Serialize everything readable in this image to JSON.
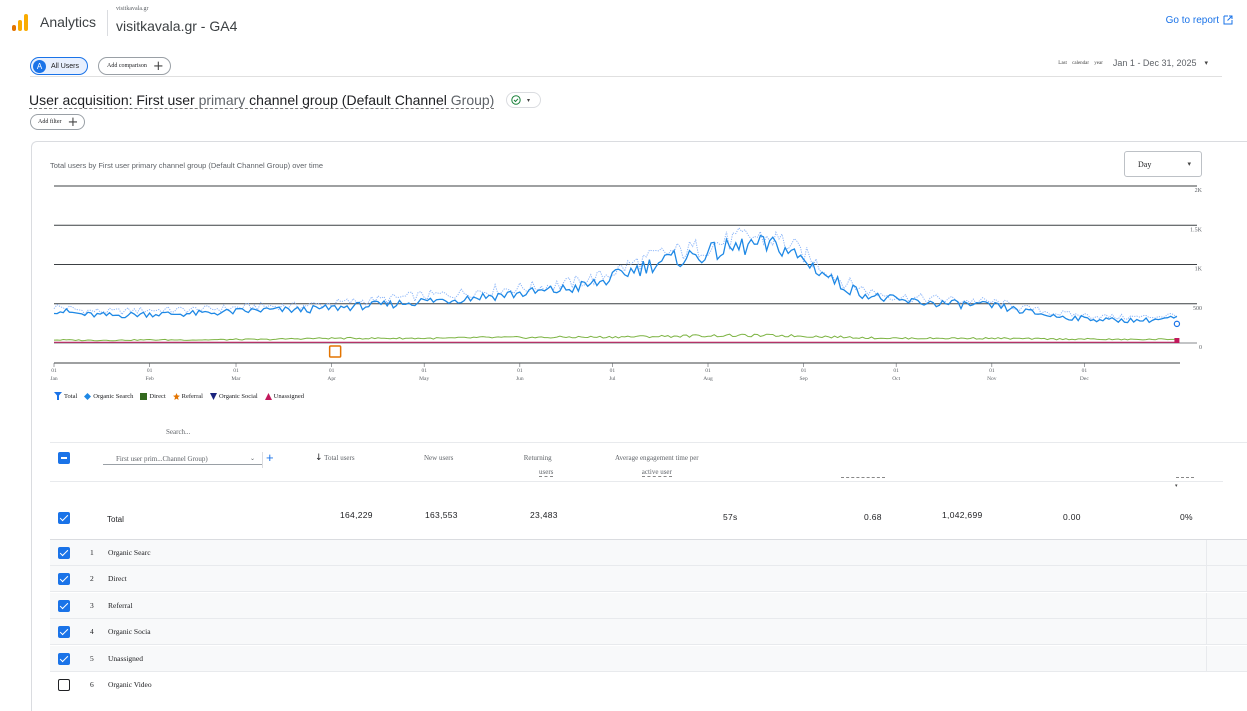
{
  "app": {
    "name": "Analytics",
    "property_domain": "visitkavala.gr",
    "property_name": "visitkavala.gr - GA4",
    "goto_report": "Go to report"
  },
  "comparison": {
    "segment_avatar": "A",
    "segment_label": "All Users",
    "add_comparison": "Add comparison",
    "date_label": "Last calendar year",
    "date_value": "Jan 1 - Dec 31, 2025"
  },
  "report": {
    "title_part1": "User acquisition: First user",
    "title_part2": " primary ",
    "title_part3": "channel group (Default Channel",
    "title_part4": " Group)",
    "add_filter": "Add filter"
  },
  "chart": {
    "title": "Total users by First user primary channel group (Default Channel Group) over time",
    "interval": "Day"
  },
  "legend": [
    {
      "label": "Total",
      "color": "#1a73e8",
      "icon": "pin-icon"
    },
    {
      "label": "Organic Search",
      "color": "#1e88e5",
      "icon": "diamond-icon"
    },
    {
      "label": "Direct",
      "color": "#33691e",
      "icon": "square-icon"
    },
    {
      "label": "Referral",
      "color": "#e37400",
      "icon": "star-icon"
    },
    {
      "label": "Organic Social",
      "color": "#1a237e",
      "icon": "triangle-down-icon"
    },
    {
      "label": "Unassigned",
      "color": "#c2185b",
      "icon": "triangle-up-icon"
    }
  ],
  "chart_data": {
    "type": "line",
    "y_ticks": [
      "2K",
      "1.5K",
      "1K",
      "500",
      "0"
    ],
    "ylim": [
      0,
      2000
    ],
    "x_ticks": [
      {
        "day": "01",
        "month": "Jan"
      },
      {
        "day": "01",
        "month": "Feb"
      },
      {
        "day": "01",
        "month": "Mar"
      },
      {
        "day": "01",
        "month": "Apr"
      },
      {
        "day": "01",
        "month": "May"
      },
      {
        "day": "01",
        "month": "Jun"
      },
      {
        "day": "01",
        "month": "Jul"
      },
      {
        "day": "01",
        "month": "Aug"
      },
      {
        "day": "01",
        "month": "Sep"
      },
      {
        "day": "01",
        "month": "Oct"
      },
      {
        "day": "01",
        "month": "Nov"
      },
      {
        "day": "01",
        "month": "Dec"
      }
    ],
    "x_month_start_days": [
      0,
      31,
      59,
      90,
      120,
      151,
      181,
      212,
      243,
      273,
      304,
      334
    ],
    "x_days_total": 365,
    "series": [
      {
        "name": "Total",
        "color": "#8ab4f8",
        "dashed": true,
        "values": [
          470,
          410,
          400,
          420,
          420,
          430,
          450,
          470,
          470,
          500,
          530,
          560,
          600,
          620,
          660,
          690,
          720,
          760,
          840,
          1000,
          1130,
          1190,
          1280,
          1360,
          1310,
          1050,
          780,
          640,
          580,
          560,
          540,
          520,
          440,
          380,
          350,
          330,
          330,
          360
        ]
      },
      {
        "name": "Organic Search",
        "color": "#1e88e5",
        "values": [
          420,
          360,
          350,
          370,
          370,
          380,
          400,
          420,
          420,
          440,
          470,
          490,
          530,
          550,
          590,
          620,
          650,
          690,
          770,
          920,
          1040,
          1100,
          1180,
          1250,
          1220,
          980,
          720,
          590,
          530,
          510,
          490,
          470,
          400,
          340,
          310,
          290,
          290,
          320
        ]
      },
      {
        "name": "Direct",
        "color": "#7cb342",
        "values": [
          40,
          35,
          35,
          40,
          40,
          40,
          45,
          45,
          55,
          60,
          60,
          60,
          60,
          60,
          70,
          70,
          70,
          75,
          75,
          80,
          85,
          90,
          95,
          95,
          95,
          85,
          75,
          65,
          60,
          60,
          60,
          60,
          55,
          50,
          50,
          45,
          45,
          50
        ]
      },
      {
        "name": "Unassigned",
        "color": "#c2185b",
        "values": [
          10,
          10,
          10,
          10,
          10,
          10,
          10,
          10,
          10,
          10,
          10,
          10,
          10,
          10,
          10,
          10,
          10,
          10,
          10,
          10,
          10,
          10,
          10,
          10,
          10,
          10,
          10,
          10,
          10,
          10,
          10,
          10,
          10,
          10,
          10,
          10,
          10,
          10
        ]
      }
    ]
  },
  "table": {
    "search_placeholder": "Search...",
    "dimension": "First user prim...Channel Group)",
    "columns": {
      "total_users": "Total users",
      "new_users": "New users",
      "returning_1": "Returning",
      "returning_2": "users",
      "aet_1": "Average engagement time per",
      "aet_2": "active user"
    },
    "totals": {
      "label": "Total",
      "total_users": "164,229",
      "new_users": "163,553",
      "returning_users": "23,483",
      "avg_engagement": "57s",
      "col5": "0.68",
      "col6": "1,042,699",
      "col7": "0.00",
      "col8": "0%"
    },
    "rows": [
      {
        "num": "1",
        "name": "Organic Searc",
        "checked": true
      },
      {
        "num": "2",
        "name": "Direct",
        "checked": true
      },
      {
        "num": "3",
        "name": "Referral",
        "checked": true
      },
      {
        "num": "4",
        "name": "Organic Socia",
        "checked": true
      },
      {
        "num": "5",
        "name": "Unassigned",
        "checked": true
      },
      {
        "num": "6",
        "name": "Organic Video",
        "checked": false
      }
    ]
  }
}
